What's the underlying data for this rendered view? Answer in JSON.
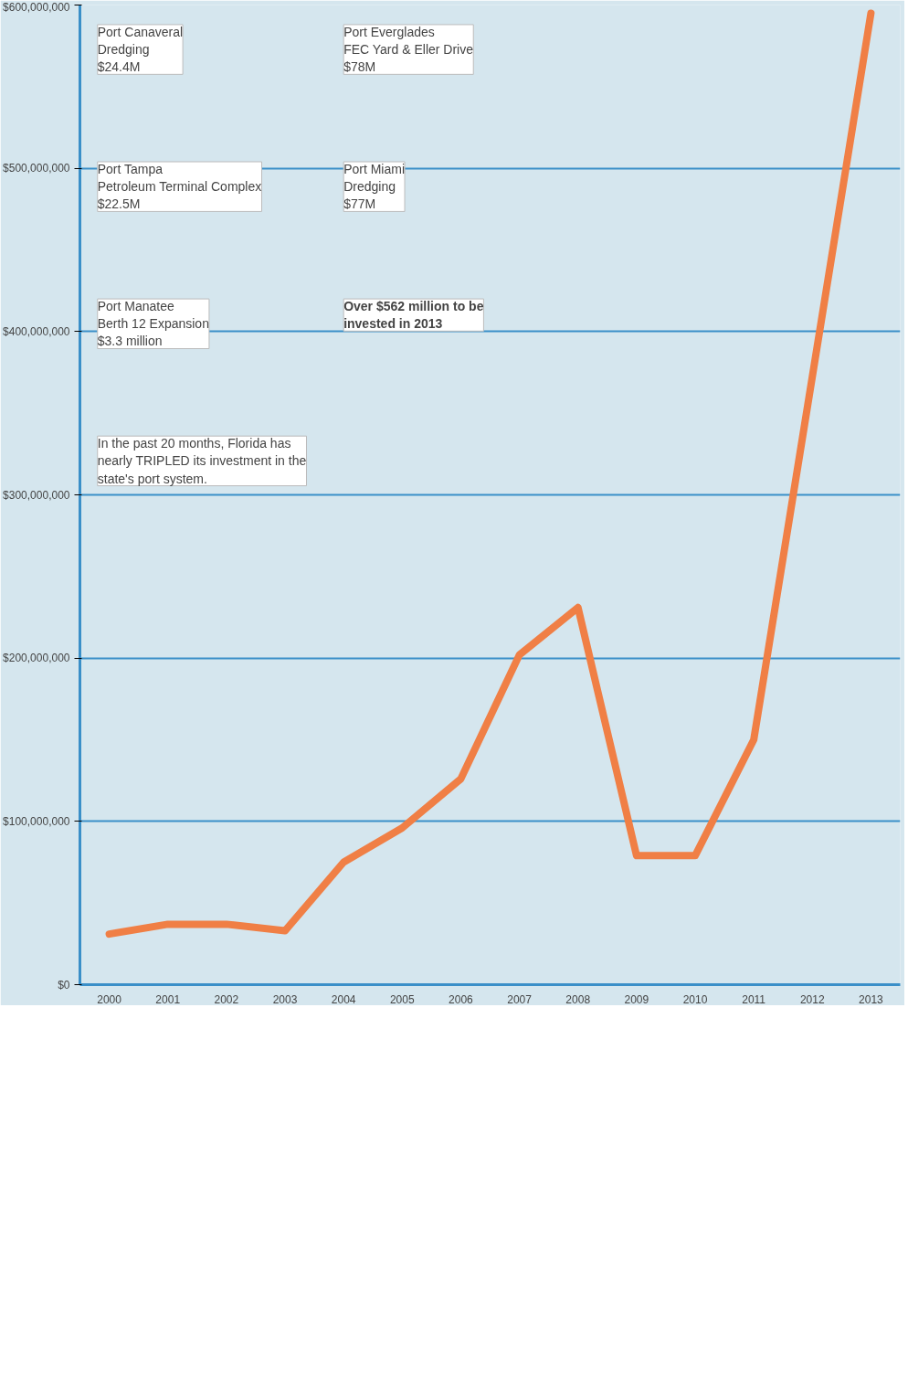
{
  "chart_data": {
    "type": "line",
    "x": [
      2000,
      2001,
      2002,
      2003,
      2004,
      2005,
      2006,
      2007,
      2008,
      2009,
      2010,
      2011,
      2013
    ],
    "series": [
      {
        "color": "#f07f45",
        "values": [
          31000000,
          37000000,
          37000000,
          33000000,
          75000000,
          96000000,
          126000000,
          202000000,
          231000000,
          79000000,
          79000000,
          150000000,
          595000000
        ]
      }
    ],
    "xlim": [
      1999.5,
      2013.5
    ],
    "xticks": [
      2000,
      2001,
      2002,
      2003,
      2004,
      2005,
      2006,
      2007,
      2008,
      2009,
      2010,
      2011,
      2012,
      2013
    ],
    "ylim": [
      0,
      600000000
    ],
    "yticks": [
      {
        "value": 0,
        "label": "$0"
      },
      {
        "value": 100000000,
        "label": "$100,000,000"
      },
      {
        "value": 200000000,
        "label": "$200,000,000"
      },
      {
        "value": 300000000,
        "label": "$300,000,000"
      },
      {
        "value": 400000000,
        "label": "$400,000,000"
      },
      {
        "value": 500000000,
        "label": "$500,000,000"
      },
      {
        "value": 600000000,
        "label": "$600,000,000"
      }
    ],
    "grid": "y",
    "marker": "none",
    "line_style": "solid",
    "annotations": [
      "Port Canaveral\nDredging\n$24.4M",
      "Port Everglades\nFEC Yard & Eller Drive\n$78M",
      "Port Tampa\nPetroleum Terminal Complex\n$22.5M",
      "Port Miami\nDredging\n$77M",
      "Port Manatee\nBerth 12 Expansion\n$3.3 million",
      "Over $562 million to be\ninvested in 2013",
      "In the past 20 months, Florida has\nnearly TRIPLED its investment in the\nstate's port system."
    ]
  }
}
